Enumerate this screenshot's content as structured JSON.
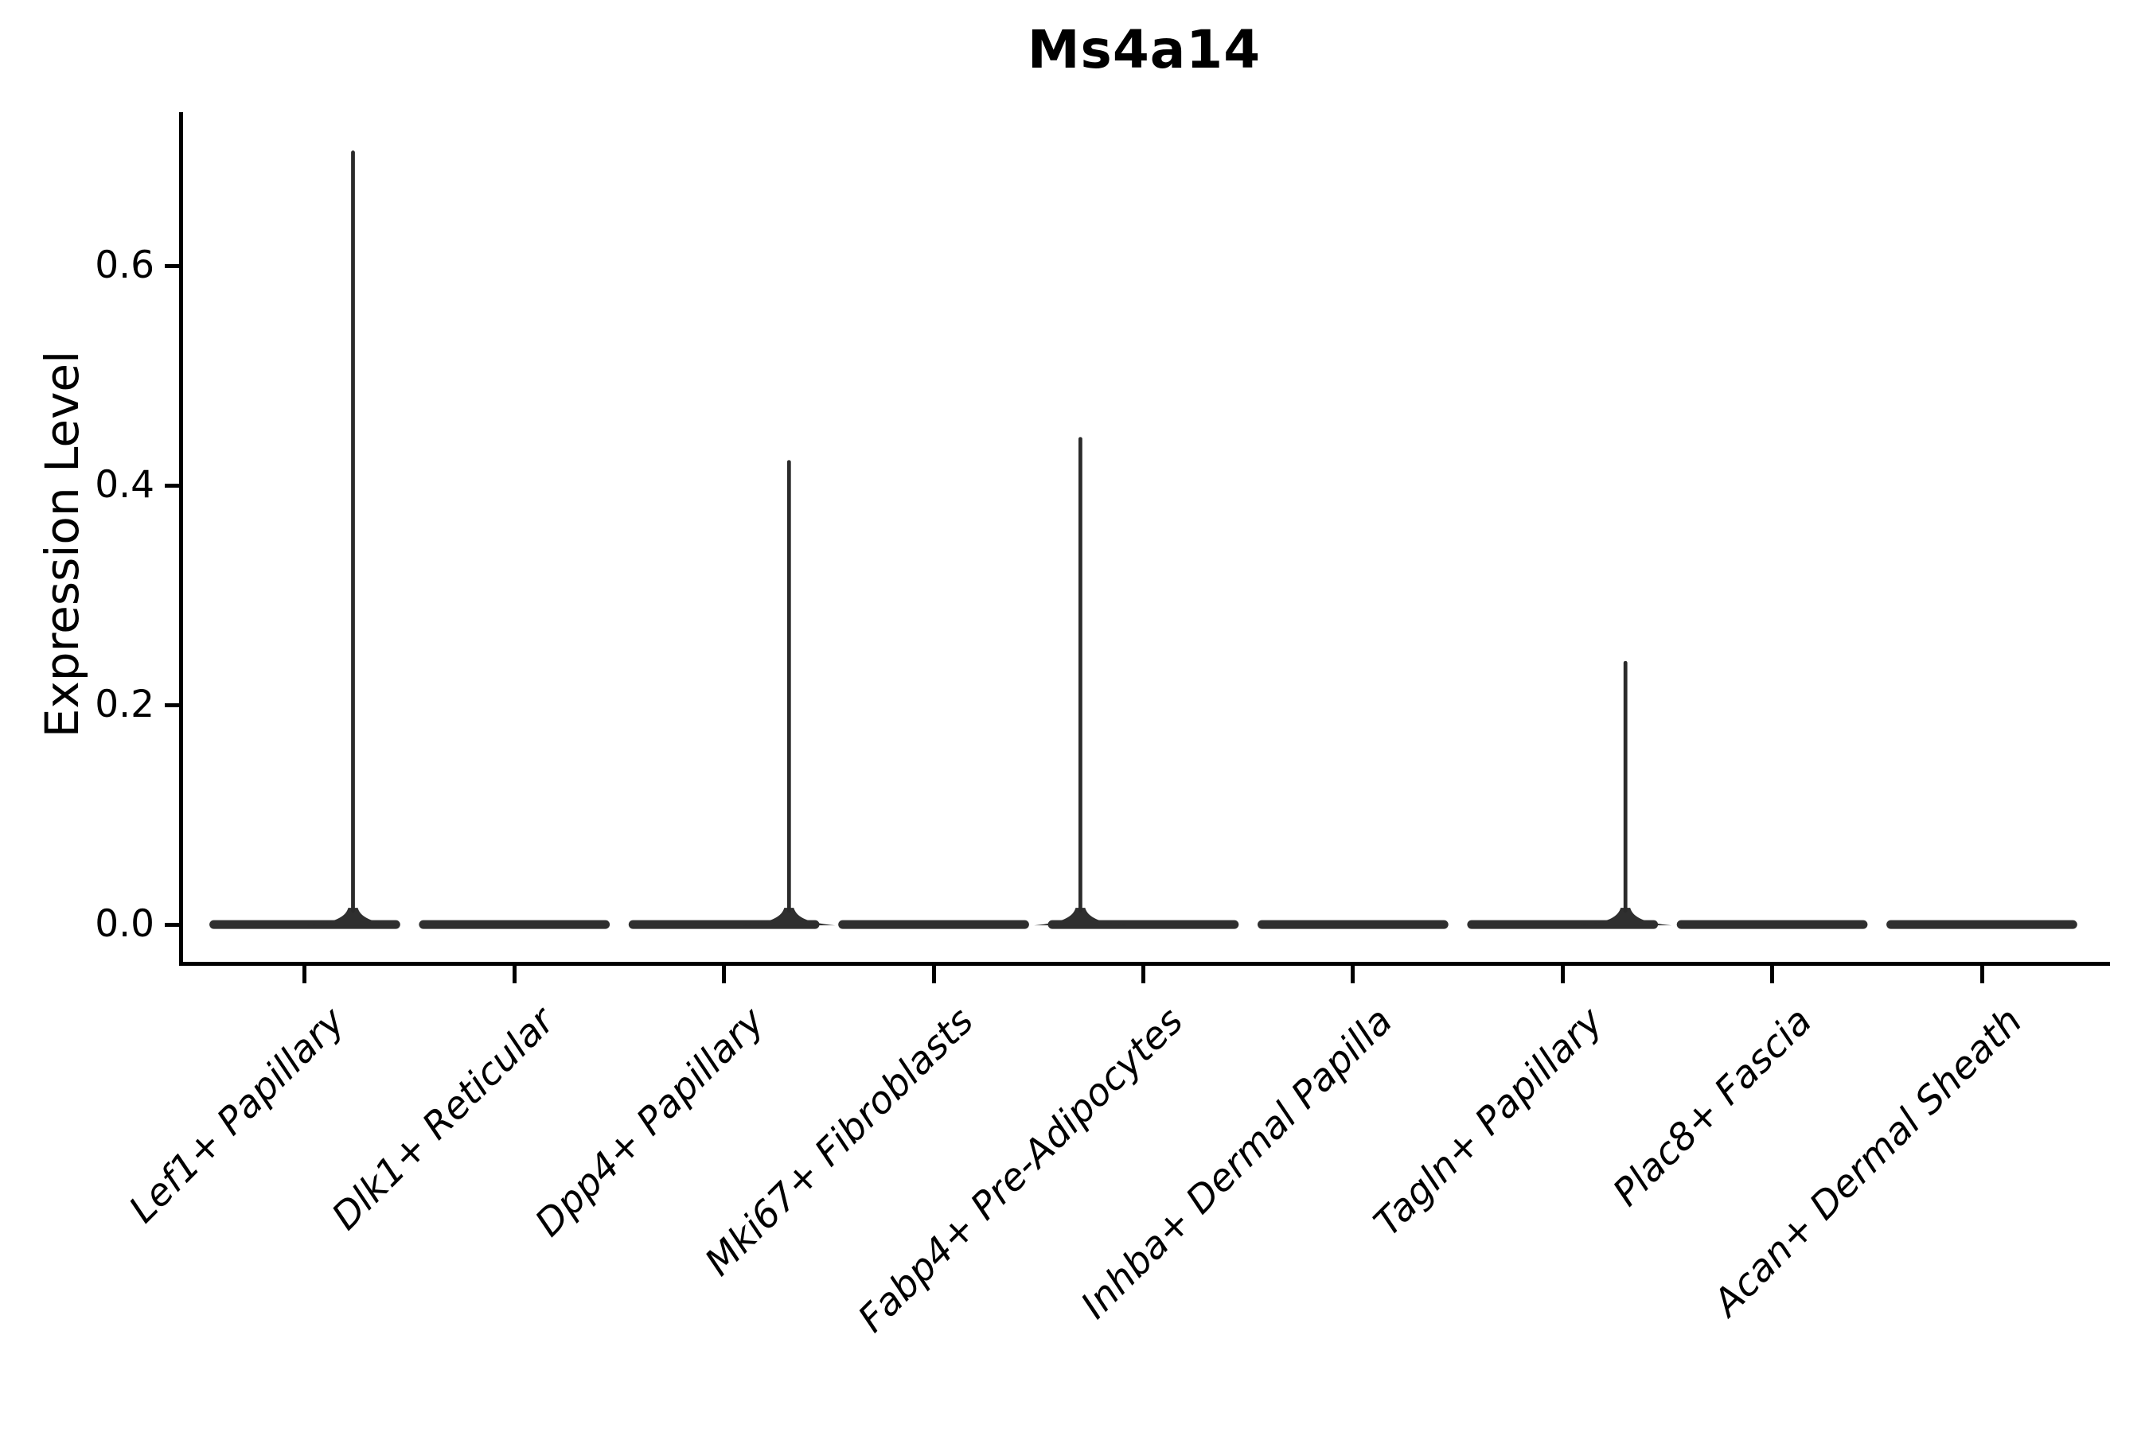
{
  "figure": {
    "background": "#ffffff",
    "ink_color": "#000000",
    "violin_color": "#2f2f2f",
    "spike_color": "#2b2b2b"
  },
  "chart_data": {
    "type": "violin",
    "title": "Ms4a14",
    "xlabel": "",
    "ylabel": "Expression Level",
    "categories": [
      "Lef1+ Papillary",
      "Dlk1+ Reticular",
      "Dpp4+ Papillary",
      "Mki67+ Fibroblasts",
      "Fabp4+ Pre-Adipocytes",
      "Inhba+ Dermal Papilla",
      "Tagln+ Papillary",
      "Plac8+ Fascia",
      "Acan+ Dermal Sheath"
    ],
    "violins": [
      {
        "category": "Lef1+ Papillary",
        "max_expression": 0.705,
        "has_spike": true,
        "spike_offset": 0.23
      },
      {
        "category": "Dlk1+ Reticular",
        "max_expression": 0.0,
        "has_spike": false,
        "spike_offset": 0
      },
      {
        "category": "Dpp4+ Papillary",
        "max_expression": 0.423,
        "has_spike": true,
        "spike_offset": 0.31
      },
      {
        "category": "Mki67+ Fibroblasts",
        "max_expression": 0.0,
        "has_spike": false,
        "spike_offset": 0
      },
      {
        "category": "Fabp4+ Pre-Adipocytes",
        "max_expression": 0.444,
        "has_spike": true,
        "spike_offset": -0.3
      },
      {
        "category": "Inhba+ Dermal Papilla",
        "max_expression": 0.0,
        "has_spike": false,
        "spike_offset": 0
      },
      {
        "category": "Tagln+ Papillary",
        "max_expression": 0.24,
        "has_spike": true,
        "spike_offset": 0.3
      },
      {
        "category": "Plac8+ Fascia",
        "max_expression": 0.0,
        "has_spike": false,
        "spike_offset": 0
      },
      {
        "category": "Acan+ Dermal Sheath",
        "max_expression": 0.0,
        "has_spike": false,
        "spike_offset": 0
      }
    ],
    "ytick_labels": [
      "0.0",
      "0.2",
      "0.4",
      "0.6"
    ],
    "ytick_values": [
      0.0,
      0.2,
      0.4,
      0.6
    ],
    "ylim": [
      -0.034,
      0.74
    ],
    "xlim": [
      -0.59,
      8.6
    ],
    "violin_rel_width": 0.91,
    "baseline_value": 0.0,
    "grid": false,
    "legend": "none"
  }
}
